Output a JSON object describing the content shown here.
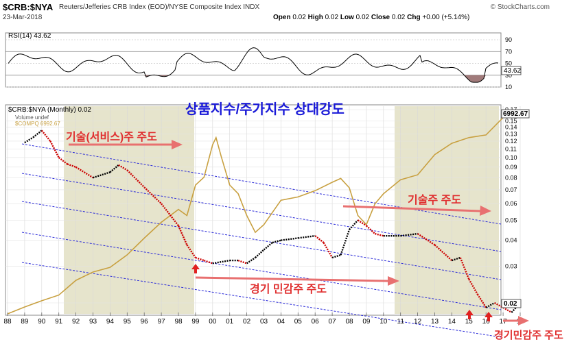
{
  "header": {
    "symbol": "$CRB:$NYA",
    "description": "Reuters/Jefferies CRB Index (EOD)/NYSE Composite Index  INDX",
    "brand": "© StockCharts.com",
    "date": "23-Mar-2018",
    "open_label": "Open",
    "open": "0.02",
    "high_label": "High",
    "high": "0.02",
    "low_label": "Low",
    "low": "0.02",
    "close_label": "Close",
    "close": "0.02",
    "chg_label": "Chg",
    "chg": "+0.00 (+5.14%)"
  },
  "rsi_panel": {
    "label": "RSI(14) 43.62",
    "ticks": [
      "90",
      "70",
      "50",
      "30",
      "10"
    ],
    "current_value": "43.62"
  },
  "legend": {
    "main": "$CRB:$NYA (Monthly) 0.02",
    "volume": "Volume undef",
    "compq": "$COMPQ 6992.67"
  },
  "annotations": {
    "title": "상품지수/주가지수 상대강도",
    "tech_service": "기술(서비스)주 주도",
    "cyclical": "경기 민감주 주도",
    "tech": "기술주 주도",
    "cyclical_bottom": "경기민감주 주도"
  },
  "colors": {
    "ratio_line": "#000000",
    "ratio_down": "#cc0000",
    "compq": "#c8a040",
    "channel": "#2a2ad8",
    "shade": "#e6e4cc",
    "annotation_red": "#e03030",
    "title_blue": "#1a1ad8"
  },
  "chart_data": {
    "type": "line",
    "title": "",
    "x_ticks": [
      "88",
      "89",
      "90",
      "91",
      "92",
      "93",
      "94",
      "95",
      "96",
      "97",
      "98",
      "99",
      "00",
      "01",
      "02",
      "03",
      "04",
      "05",
      "06",
      "07",
      "08",
      "09",
      "10",
      "11",
      "12",
      "13",
      "14",
      "15",
      "16",
      "17",
      "18"
    ],
    "y_ticks": [
      "0.17",
      "0.15",
      "0.14",
      "0.13",
      "0.12",
      "0.11",
      "0.10",
      "0.09",
      "0.08",
      "0.07",
      "0.06",
      "0.05",
      "0.04",
      "0.03",
      "0.02"
    ],
    "y_scale": "log",
    "right_labels": {
      "compq_last": "6992.67",
      "ratio_last": "0.02"
    },
    "series": [
      {
        "name": "$CRB:$NYA (Monthly)",
        "x": [
          1989.0,
          1989.5,
          1990.0,
          1990.5,
          1991.0,
          1991.5,
          1992.0,
          1993.0,
          1994.0,
          1994.5,
          1995.0,
          1996.0,
          1997.0,
          1998.0,
          1998.5,
          1999.0,
          1999.5,
          2000.0,
          2001.0,
          2001.5,
          2002.0,
          2002.5,
          2003.0,
          2003.5,
          2004.0,
          2005.0,
          2006.0,
          2006.5,
          2007.0,
          2007.5,
          2008.0,
          2008.5,
          2009.0,
          2009.5,
          2010.0,
          2011.0,
          2012.0,
          2013.0,
          2014.0,
          2014.5,
          2015.0,
          2015.5,
          2016.0,
          2016.5,
          2017.0,
          2017.5,
          2018.0
        ],
        "values": [
          0.118,
          0.125,
          0.135,
          0.12,
          0.1,
          0.093,
          0.09,
          0.08,
          0.085,
          0.092,
          0.087,
          0.072,
          0.06,
          0.047,
          0.038,
          0.033,
          0.032,
          0.031,
          0.032,
          0.032,
          0.031,
          0.033,
          0.036,
          0.039,
          0.04,
          0.041,
          0.042,
          0.039,
          0.033,
          0.034,
          0.045,
          0.05,
          0.047,
          0.043,
          0.042,
          0.042,
          0.043,
          0.038,
          0.032,
          0.033,
          0.026,
          0.022,
          0.019,
          0.02,
          0.019,
          0.018,
          0.02
        ]
      },
      {
        "name": "$COMPQ",
        "x": [
          1988.0,
          1989.0,
          1990.0,
          1991.0,
          1992.0,
          1993.0,
          1994.0,
          1995.0,
          1996.0,
          1997.0,
          1998.0,
          1998.5,
          1999.0,
          1999.5,
          2000.0,
          2000.2,
          2000.5,
          2001.0,
          2001.5,
          2002.0,
          2002.5,
          2003.0,
          2004.0,
          2005.0,
          2006.0,
          2007.0,
          2007.5,
          2008.0,
          2008.5,
          2009.0,
          2009.5,
          2010.0,
          2011.0,
          2012.0,
          2013.0,
          2014.0,
          2015.0,
          2016.0,
          2017.0,
          2018.0
        ],
        "values": [
          380,
          420,
          460,
          500,
          620,
          700,
          750,
          900,
          1150,
          1450,
          1750,
          1600,
          2500,
          2800,
          4500,
          5000,
          3800,
          2500,
          2200,
          1600,
          1250,
          1400,
          2000,
          2100,
          2300,
          2600,
          2750,
          2400,
          1600,
          1400,
          1900,
          2200,
          2700,
          2900,
          3900,
          4600,
          5000,
          5200,
          6700,
          7300
        ]
      }
    ]
  }
}
